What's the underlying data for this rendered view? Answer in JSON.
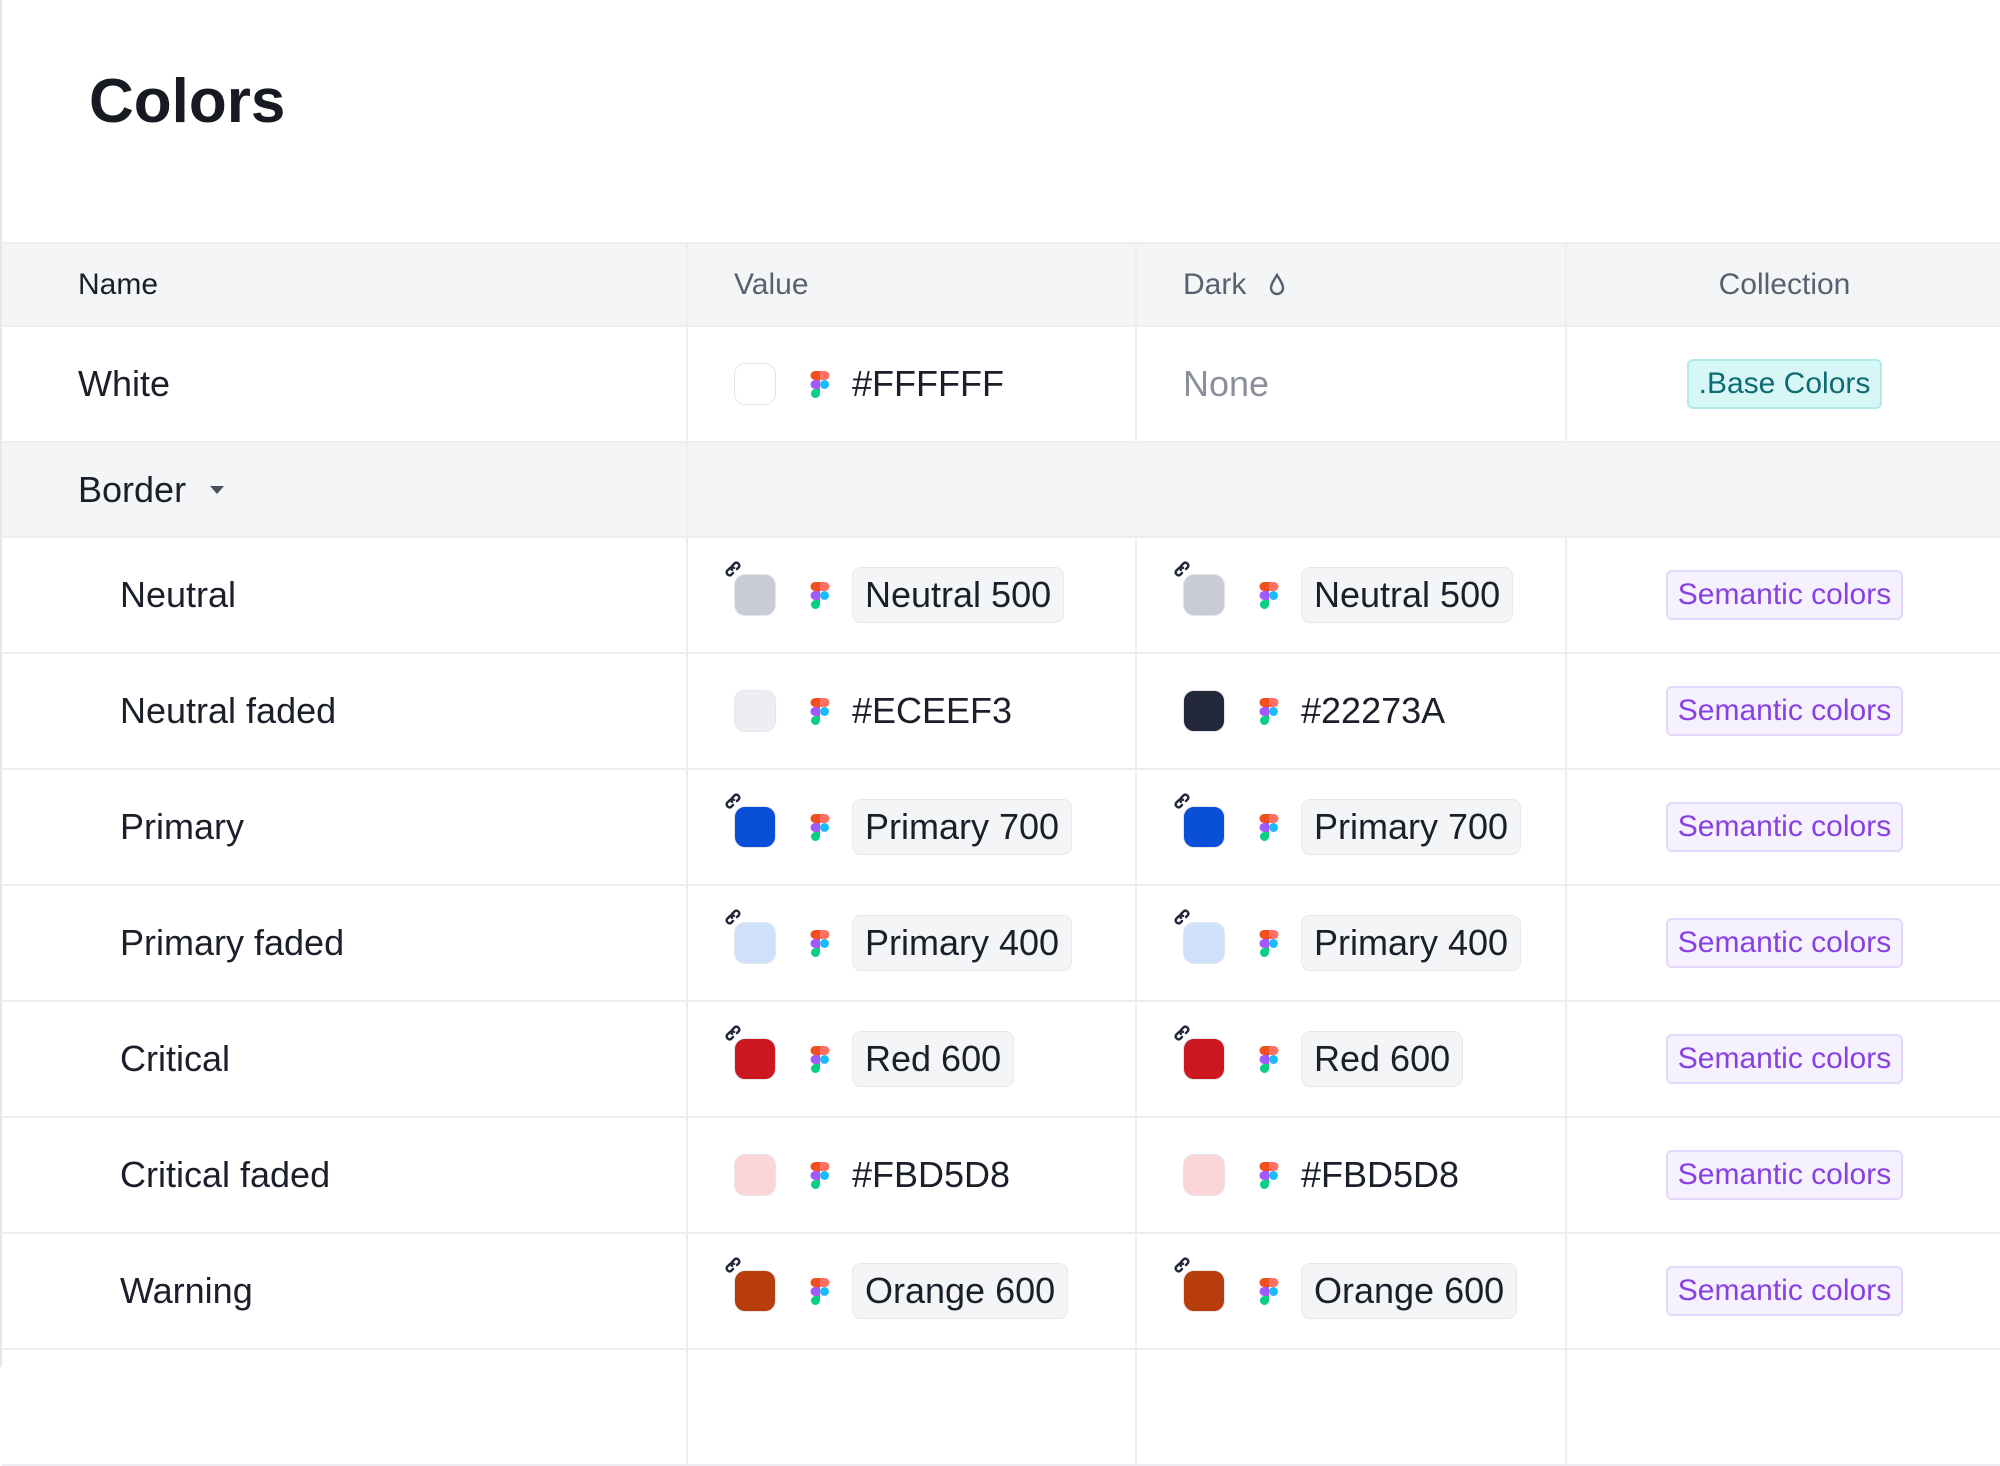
{
  "header": {
    "title": "Colors"
  },
  "table": {
    "columns": [
      "Name",
      "Value",
      "Dark",
      "Collection"
    ],
    "rows": [
      {
        "name": "White",
        "value": {
          "text": "#FFFFFF",
          "swatch": "#FFFFFF"
        },
        "dark": {
          "text": "None"
        },
        "collection": ".Base Colors",
        "collection_style": "base"
      },
      {
        "group": "Border"
      },
      {
        "name": "Neutral",
        "value": {
          "text": "Neutral 500",
          "swatch": "#C9CCD6",
          "alias": true
        },
        "dark": {
          "text": "Neutral 500",
          "swatch": "#C9CCD6",
          "alias": true
        },
        "collection": "Semantic colors",
        "collection_style": "semantic"
      },
      {
        "name": "Neutral faded",
        "value": {
          "text": "#ECEEF3",
          "swatch": "#ECEEF3"
        },
        "dark": {
          "text": "#22273A",
          "swatch": "#22273A"
        },
        "collection": "Semantic colors",
        "collection_style": "semantic"
      },
      {
        "name": "Primary",
        "value": {
          "text": "Primary 700",
          "swatch": "#0A4FD8",
          "alias": true
        },
        "dark": {
          "text": "Primary 700",
          "swatch": "#0A4FD8",
          "alias": true
        },
        "collection": "Semantic colors",
        "collection_style": "semantic"
      },
      {
        "name": "Primary faded",
        "value": {
          "text": "Primary 400",
          "swatch": "#CFE0FB",
          "alias": true
        },
        "dark": {
          "text": "Primary 400",
          "swatch": "#CFE0FB",
          "alias": true
        },
        "collection": "Semantic colors",
        "collection_style": "semantic"
      },
      {
        "name": "Critical",
        "value": {
          "text": "Red 600",
          "swatch": "#CC1620",
          "alias": true
        },
        "dark": {
          "text": "Red 600",
          "swatch": "#CC1620",
          "alias": true
        },
        "collection": "Semantic colors",
        "collection_style": "semantic"
      },
      {
        "name": "Critical faded",
        "value": {
          "text": "#FBD5D8",
          "swatch": "#FBD5D8"
        },
        "dark": {
          "text": "#FBD5D8",
          "swatch": "#FBD5D8"
        },
        "collection": "Semantic colors",
        "collection_style": "semantic"
      },
      {
        "name": "Warning",
        "value": {
          "text": "Orange 600",
          "swatch": "#B83D0C",
          "alias": true
        },
        "dark": {
          "text": "Orange 600",
          "swatch": "#B83D0C",
          "alias": true
        },
        "collection": "Semantic colors",
        "collection_style": "semantic"
      }
    ]
  }
}
